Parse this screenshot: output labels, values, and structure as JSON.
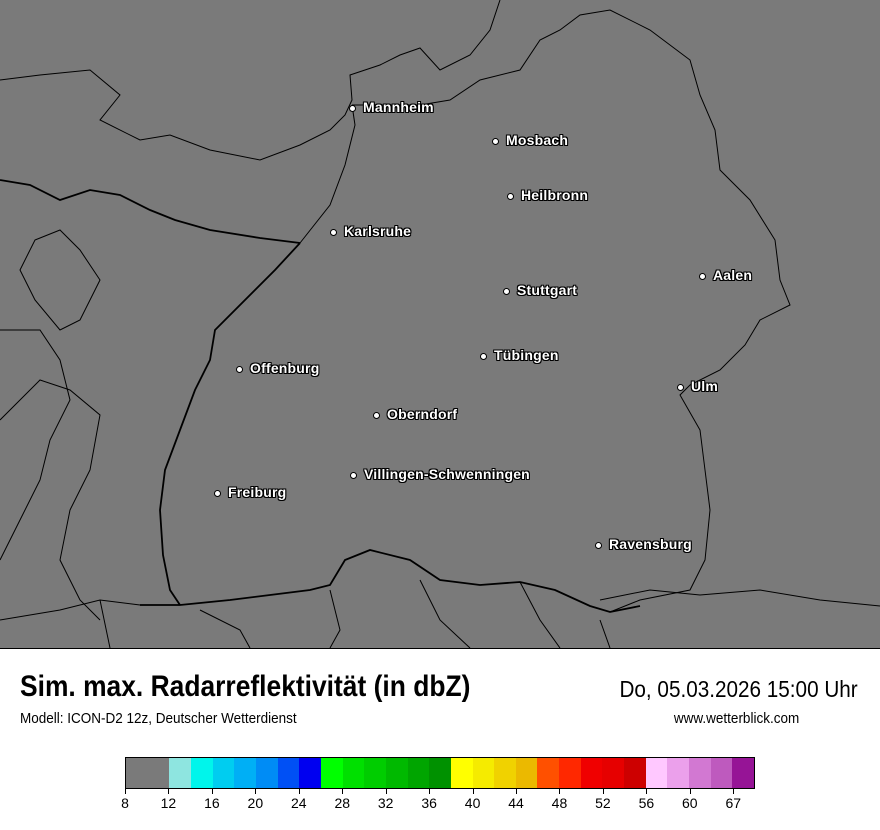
{
  "map": {
    "background": "#7a7a7a",
    "cities": [
      {
        "name": "Mannheim"
      },
      {
        "name": "Mosbach"
      },
      {
        "name": "Heilbronn"
      },
      {
        "name": "Karlsruhe"
      },
      {
        "name": "Aalen"
      },
      {
        "name": "Stuttgart"
      },
      {
        "name": "Tübingen"
      },
      {
        "name": "Offenburg"
      },
      {
        "name": "Ulm"
      },
      {
        "name": "Oberndorf"
      },
      {
        "name": "Villingen-Schwenningen"
      },
      {
        "name": "Freiburg"
      },
      {
        "name": "Ravensburg"
      }
    ]
  },
  "header": {
    "title": "Sim. max. Radarreflektivität (in dbZ)",
    "datetime": "Do, 05.03.2026 15:00 Uhr",
    "model": "Modell: ICON-D2 12z, Deutscher Wetterdienst",
    "website": "www.wetterblick.com"
  },
  "legend": {
    "colors": [
      "#7a7a7a",
      "#8ee5e0",
      "#00f5eb",
      "#00cdf0",
      "#00aff5",
      "#008cf5",
      "#0050f5",
      "#0000f0",
      "#00ff00",
      "#00e000",
      "#00cd00",
      "#00b900",
      "#00a500",
      "#009100",
      "#ffff00",
      "#f5eb00",
      "#f0d200",
      "#ebb900",
      "#ff5000",
      "#ff2800",
      "#f00000",
      "#e60000",
      "#cd0000",
      "#ffc8ff",
      "#eba0eb",
      "#d278d2",
      "#be5abe",
      "#961496"
    ],
    "tick_labels": [
      "8",
      "12",
      "16",
      "20",
      "24",
      "28",
      "32",
      "36",
      "40",
      "44",
      "48",
      "52",
      "56",
      "60",
      "67"
    ]
  }
}
